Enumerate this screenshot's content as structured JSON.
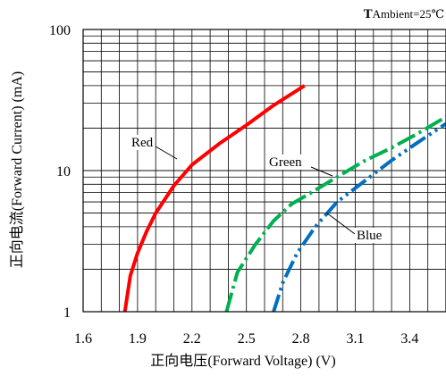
{
  "chart_data": {
    "type": "line",
    "title": "",
    "annotation_ambient": {
      "bold_prefix": "T",
      "text": "Ambient=25℃"
    },
    "xlabel": {
      "cjk": "正向电压",
      "latin": "(Forward Voltage) (V)"
    },
    "ylabel": {
      "cjk": "正向电流",
      "latin": "(Forward Current) (mA)"
    },
    "x_ticks": [
      "1.6",
      "1.9",
      "2.2",
      "2.5",
      "2.8",
      "3.1",
      "3.4"
    ],
    "y_ticks": [
      "1",
      "10",
      "100"
    ],
    "xlim": [
      1.6,
      3.6
    ],
    "ylim": [
      1,
      100
    ],
    "y_scale": "log",
    "grid": true,
    "series": [
      {
        "name": "Red",
        "color": "#ff0000",
        "style": "solid",
        "x": [
          1.83,
          1.86,
          1.9,
          1.95,
          2.0,
          2.1,
          2.2,
          2.35,
          2.5,
          2.65,
          2.82
        ],
        "y": [
          1.0,
          1.8,
          2.6,
          3.7,
          5.0,
          7.8,
          11.0,
          15.5,
          21.0,
          29.0,
          40.0
        ]
      },
      {
        "name": "Green",
        "color": "#00b050",
        "style": "dashdot",
        "x": [
          2.39,
          2.45,
          2.55,
          2.65,
          2.75,
          2.85,
          3.0,
          3.15,
          3.3,
          3.45,
          3.6
        ],
        "y": [
          1.0,
          1.9,
          3.0,
          4.4,
          5.8,
          6.9,
          9.0,
          11.7,
          14.5,
          18.5,
          24.0
        ]
      },
      {
        "name": "Blue",
        "color": "#0070c0",
        "style": "dashdotdot",
        "x": [
          2.65,
          2.7,
          2.78,
          2.88,
          3.0,
          3.15,
          3.3,
          3.45,
          3.6
        ],
        "y": [
          1.0,
          1.6,
          2.6,
          4.0,
          6.0,
          8.4,
          11.8,
          16.0,
          21.5
        ]
      }
    ],
    "labels": [
      {
        "series": "Red",
        "text": "Red"
      },
      {
        "series": "Green",
        "text": "Green"
      },
      {
        "series": "Blue",
        "text": "Blue"
      }
    ]
  }
}
